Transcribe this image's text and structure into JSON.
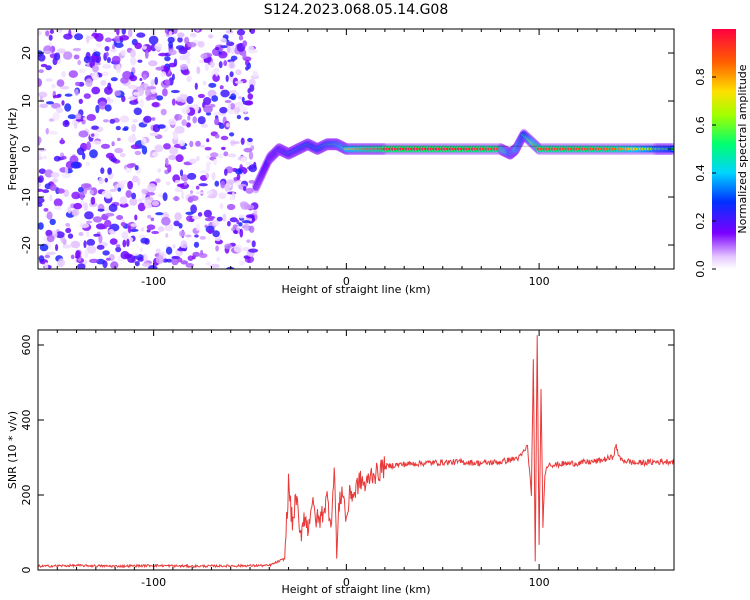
{
  "title": "S124.2023.068.05.14.G08",
  "chart_data": [
    {
      "type": "heatmap",
      "name": "spectrogram",
      "xlabel": "Height of straight line (km)",
      "ylabel": "Frequency (Hz)",
      "xlim": [
        -160,
        170
      ],
      "ylim": [
        -25,
        25
      ],
      "xticks": [
        -100,
        0,
        100
      ],
      "yticks": [
        -20,
        -10,
        0,
        10,
        20
      ],
      "colorbar": {
        "label": "Normalized spectral amplitude",
        "range": [
          0,
          1
        ],
        "ticks": [
          0.0,
          0.2,
          0.4,
          0.6,
          0.8
        ],
        "tick_labels": [
          "0.0",
          "0.2",
          "0.4",
          "0.6",
          "0.8"
        ],
        "colormap": "rainbow"
      },
      "noise_region_x": [
        -160,
        -47
      ],
      "signal_track": {
        "x": [
          -47,
          -40,
          -35,
          -30,
          -25,
          -20,
          -15,
          -10,
          -5,
          0,
          10,
          20,
          40,
          60,
          80,
          85,
          88,
          92,
          100,
          120,
          140,
          160,
          170
        ],
        "y": [
          -8,
          -2,
          0,
          -1,
          0,
          1,
          0,
          1,
          1,
          0,
          0,
          0,
          0,
          0,
          0,
          -1,
          0,
          3,
          0,
          0,
          0,
          0,
          0
        ],
        "amplitude": [
          0.2,
          0.3,
          0.35,
          0.4,
          0.45,
          0.5,
          0.5,
          0.55,
          0.6,
          0.7,
          0.85,
          0.95,
          0.95,
          0.95,
          0.9,
          0.6,
          0.7,
          0.5,
          0.9,
          0.9,
          0.85,
          0.6,
          0.5
        ]
      }
    },
    {
      "type": "line",
      "name": "snr",
      "xlabel": "Height of straight line (km)",
      "ylabel": "SNR (10 * v/v)",
      "xlim": [
        -160,
        170
      ],
      "ylim": [
        0,
        640
      ],
      "xticks": [
        -100,
        0,
        100
      ],
      "yticks": [
        0,
        200,
        400,
        600
      ],
      "color": "#e83a3a",
      "series": [
        {
          "x": [
            -160,
            -140,
            -120,
            -100,
            -80,
            -60,
            -40,
            -32,
            -30,
            -28,
            -26,
            -24,
            -22,
            -20,
            -18,
            -16,
            -14,
            -12,
            -10,
            -8,
            -6,
            -5,
            -4,
            -2,
            0,
            2,
            4,
            6,
            8,
            10,
            12,
            14,
            16,
            18,
            20,
            25,
            30,
            40,
            50,
            60,
            70,
            80,
            90,
            94,
            96,
            97,
            98,
            99,
            100,
            101,
            102,
            103,
            104,
            105,
            108,
            112,
            120,
            130,
            138,
            140,
            142,
            150,
            160,
            170
          ],
          "y": [
            10,
            12,
            10,
            12,
            10,
            11,
            12,
            30,
            230,
            120,
            200,
            80,
            150,
            110,
            180,
            140,
            130,
            160,
            190,
            130,
            270,
            30,
            160,
            220,
            130,
            210,
            200,
            230,
            240,
            220,
            250,
            260,
            255,
            270,
            275,
            280,
            282,
            285,
            287,
            288,
            285,
            288,
            300,
            330,
            200,
            560,
            20,
            630,
            60,
            480,
            120,
            260,
            270,
            285,
            280,
            283,
            285,
            290,
            300,
            330,
            295,
            285,
            288,
            290
          ]
        }
      ]
    }
  ]
}
